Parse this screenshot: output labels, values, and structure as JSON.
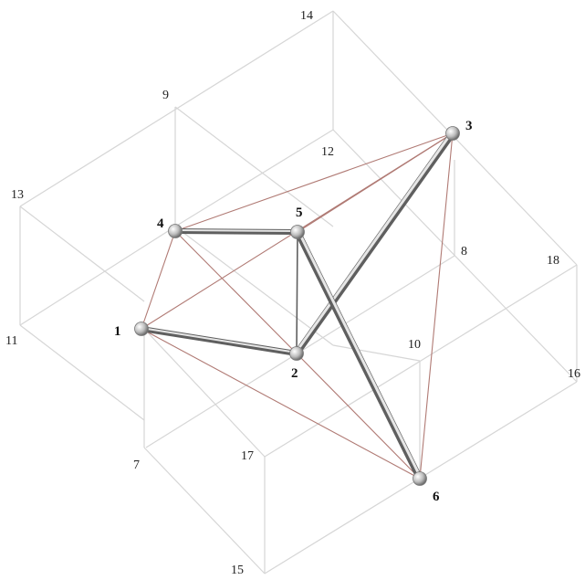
{
  "main_nodes": {
    "n1": "1",
    "n2": "2",
    "n3": "3",
    "n4": "4",
    "n5": "5",
    "n6": "6"
  },
  "grid_labels": {
    "g7": "7",
    "g8": "8",
    "g9": "9",
    "g10": "10",
    "g11": "11",
    "g12": "12",
    "g13": "13",
    "g14": "14",
    "g15": "15",
    "g16": "16",
    "g17": "17",
    "g18": "18"
  },
  "colors": {
    "grid": "#d6d6d6",
    "tie": "#b07a74",
    "strut": "#5f5f5f",
    "node": "#cfcfcf"
  }
}
